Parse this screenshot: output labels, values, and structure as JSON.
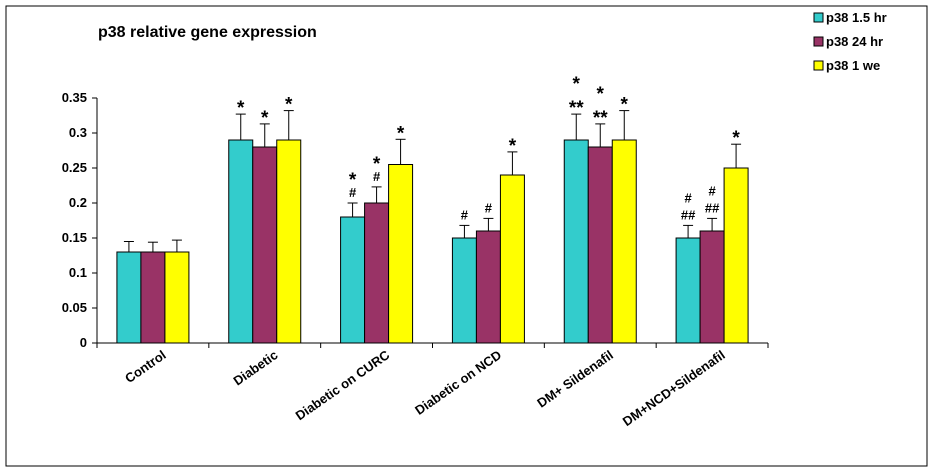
{
  "chart_data": {
    "type": "bar",
    "title": "p38 relative gene expression",
    "xlabel": "",
    "ylabel": "",
    "ylim": [
      0,
      0.35
    ],
    "yticks": [
      "0",
      "0.05",
      "0.1",
      "0.15",
      "0.2",
      "0.25",
      "0.3",
      "0.35"
    ],
    "grid": false,
    "legend_position": "top-right",
    "categories": [
      "Control",
      "Diabetic",
      "Diabetic on CURC",
      "Diabetic on NCD",
      "DM+ Sildenafil",
      "DM+NCD+Sildenafil"
    ],
    "series": [
      {
        "name": "p38 1.5 hr",
        "color": "#33CCCC",
        "values": [
          0.13,
          0.29,
          0.18,
          0.15,
          0.29,
          0.15
        ],
        "errors": [
          0.015,
          0.037,
          0.02,
          0.018,
          0.037,
          0.018
        ],
        "annotations": [
          [],
          [
            "*"
          ],
          [
            "*",
            "#"
          ],
          [
            "#"
          ],
          [
            "*",
            "**"
          ],
          [
            "#",
            "##"
          ]
        ]
      },
      {
        "name": "p38 24 hr",
        "color": "#993366",
        "values": [
          0.13,
          0.28,
          0.2,
          0.16,
          0.28,
          0.16
        ],
        "errors": [
          0.014,
          0.033,
          0.023,
          0.018,
          0.033,
          0.018
        ],
        "annotations": [
          [],
          [
            "*"
          ],
          [
            "*",
            "#"
          ],
          [
            "#"
          ],
          [
            "*",
            "**"
          ],
          [
            "#",
            "##"
          ]
        ]
      },
      {
        "name": "p38 1 we",
        "color": "#FFFF00",
        "values": [
          0.13,
          0.29,
          0.255,
          0.24,
          0.29,
          0.25
        ],
        "errors": [
          0.017,
          0.042,
          0.036,
          0.033,
          0.042,
          0.034
        ],
        "annotations": [
          [],
          [
            "*"
          ],
          [
            "*"
          ],
          [
            "*"
          ],
          [
            "*"
          ],
          [
            "*"
          ]
        ]
      }
    ]
  }
}
